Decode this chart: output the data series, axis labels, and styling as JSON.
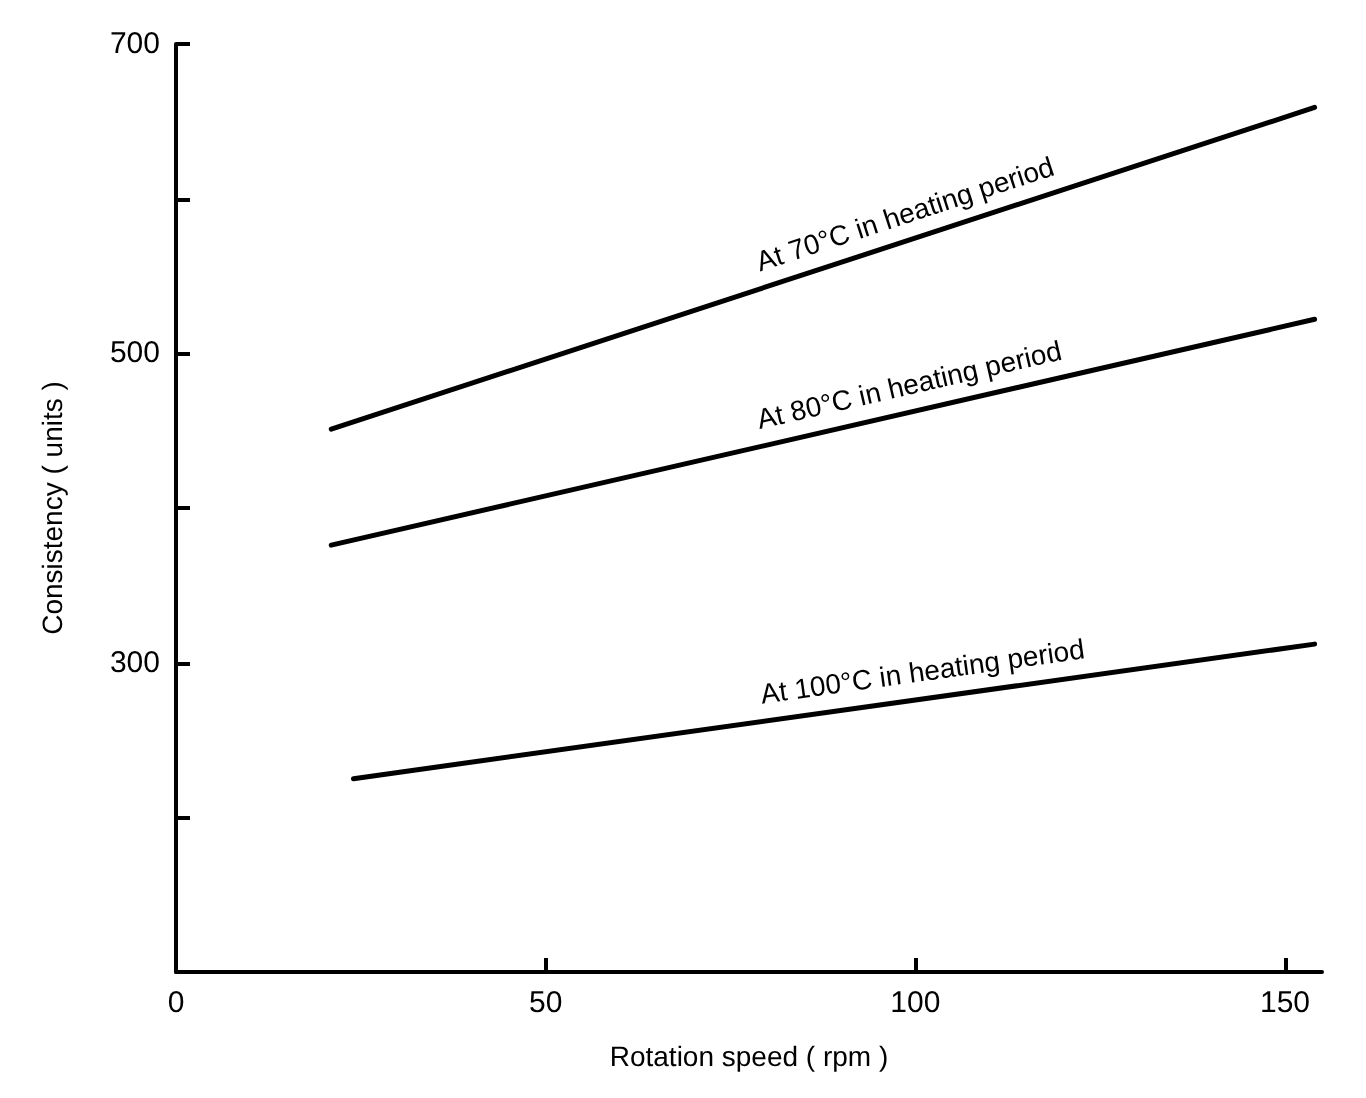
{
  "chart_data": {
    "type": "line",
    "xlabel": "Rotation speed ( rpm )",
    "ylabel": "Consistency ( units )",
    "xlim": [
      0,
      155
    ],
    "xticks": [
      0,
      50,
      100,
      150
    ],
    "ylim": [
      100,
      700
    ],
    "yticks": [
      {
        "value": 200,
        "label": null
      },
      300,
      {
        "value": 400,
        "label": null
      },
      500,
      {
        "value": 600,
        "label": null
      },
      700
    ],
    "grid": false,
    "marker": "none",
    "line_style": "solid",
    "series": [
      {
        "color": "#000000",
        "x": [
          21,
          154
        ],
        "values": [
          451,
          659
        ]
      },
      {
        "color": "#000000",
        "x": [
          21,
          154
        ],
        "values": [
          376,
          522
        ]
      },
      {
        "color": "#000000",
        "x": [
          24,
          154
        ],
        "values": [
          225,
          312
        ]
      }
    ],
    "annotations": [
      "At 70°C in heating period",
      "At 80°C in heating period",
      "At 100°C in heating period"
    ]
  }
}
